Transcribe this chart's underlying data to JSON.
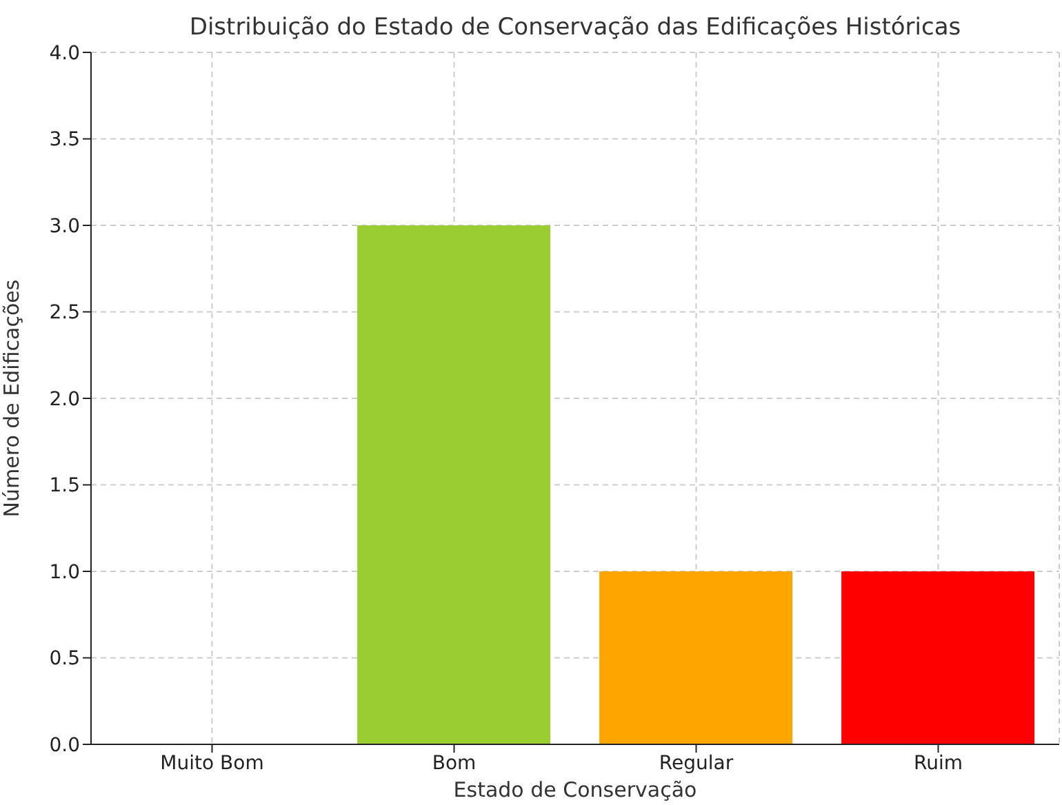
{
  "chart_data": {
    "type": "bar",
    "title": "Distribuição do Estado de Conservação das Edificações Históricas",
    "xlabel": "Estado de Conservação",
    "ylabel": "Número de Edificações",
    "categories": [
      "Muito Bom",
      "Bom",
      "Regular",
      "Ruim"
    ],
    "values": [
      0,
      3,
      1,
      1
    ],
    "colors": [
      "#008000",
      "#9acd32",
      "#ffa500",
      "#ff0000"
    ],
    "ylim": [
      0,
      4
    ],
    "yticks": [
      {
        "value": 0,
        "label": "0.0"
      },
      {
        "value": 0.5,
        "label": "0.5"
      },
      {
        "value": 1,
        "label": "1.0"
      },
      {
        "value": 1.5,
        "label": "1.5"
      },
      {
        "value": 2,
        "label": "2.0"
      },
      {
        "value": 2.5,
        "label": "2.5"
      },
      {
        "value": 3,
        "label": "3.0"
      },
      {
        "value": 3.5,
        "label": "3.5"
      },
      {
        "value": 4,
        "label": "4.0"
      }
    ],
    "grid": true
  }
}
